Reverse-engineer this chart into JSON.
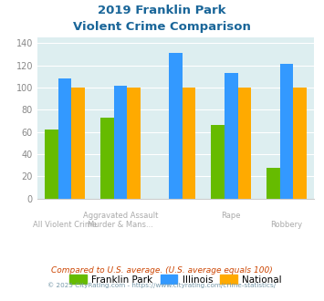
{
  "title_line1": "2019 Franklin Park",
  "title_line2": "Violent Crime Comparison",
  "franklin_park": [
    62,
    73,
    0,
    66,
    28
  ],
  "illinois": [
    108,
    102,
    131,
    113,
    121
  ],
  "national": [
    100,
    100,
    100,
    100,
    100
  ],
  "bar_colors": {
    "franklin_park": "#66bb00",
    "illinois": "#3399ff",
    "national": "#ffaa00"
  },
  "bg_color": "#ddeef0",
  "ylim": [
    0,
    145
  ],
  "yticks": [
    0,
    20,
    40,
    60,
    80,
    100,
    120,
    140
  ],
  "group_positions": [
    0,
    1,
    2,
    3,
    4
  ],
  "xlabel_row1": [
    "",
    "Aggravated Assault",
    "",
    "Rape",
    ""
  ],
  "xlabel_row2": [
    "All Violent Crime",
    "Murder & Mans...",
    "",
    "",
    "Robbery"
  ],
  "footer_text1": "Compared to U.S. average. (U.S. average equals 100)",
  "footer_text2": "© 2025 CityRating.com - https://www.cityrating.com/crime-statistics/",
  "legend_labels": [
    "Franklin Park",
    "Illinois",
    "National"
  ],
  "title_color": "#1a6699",
  "xlabel_color": "#aaaaaa",
  "footer1_color": "#cc4400",
  "footer2_color": "#7799aa"
}
